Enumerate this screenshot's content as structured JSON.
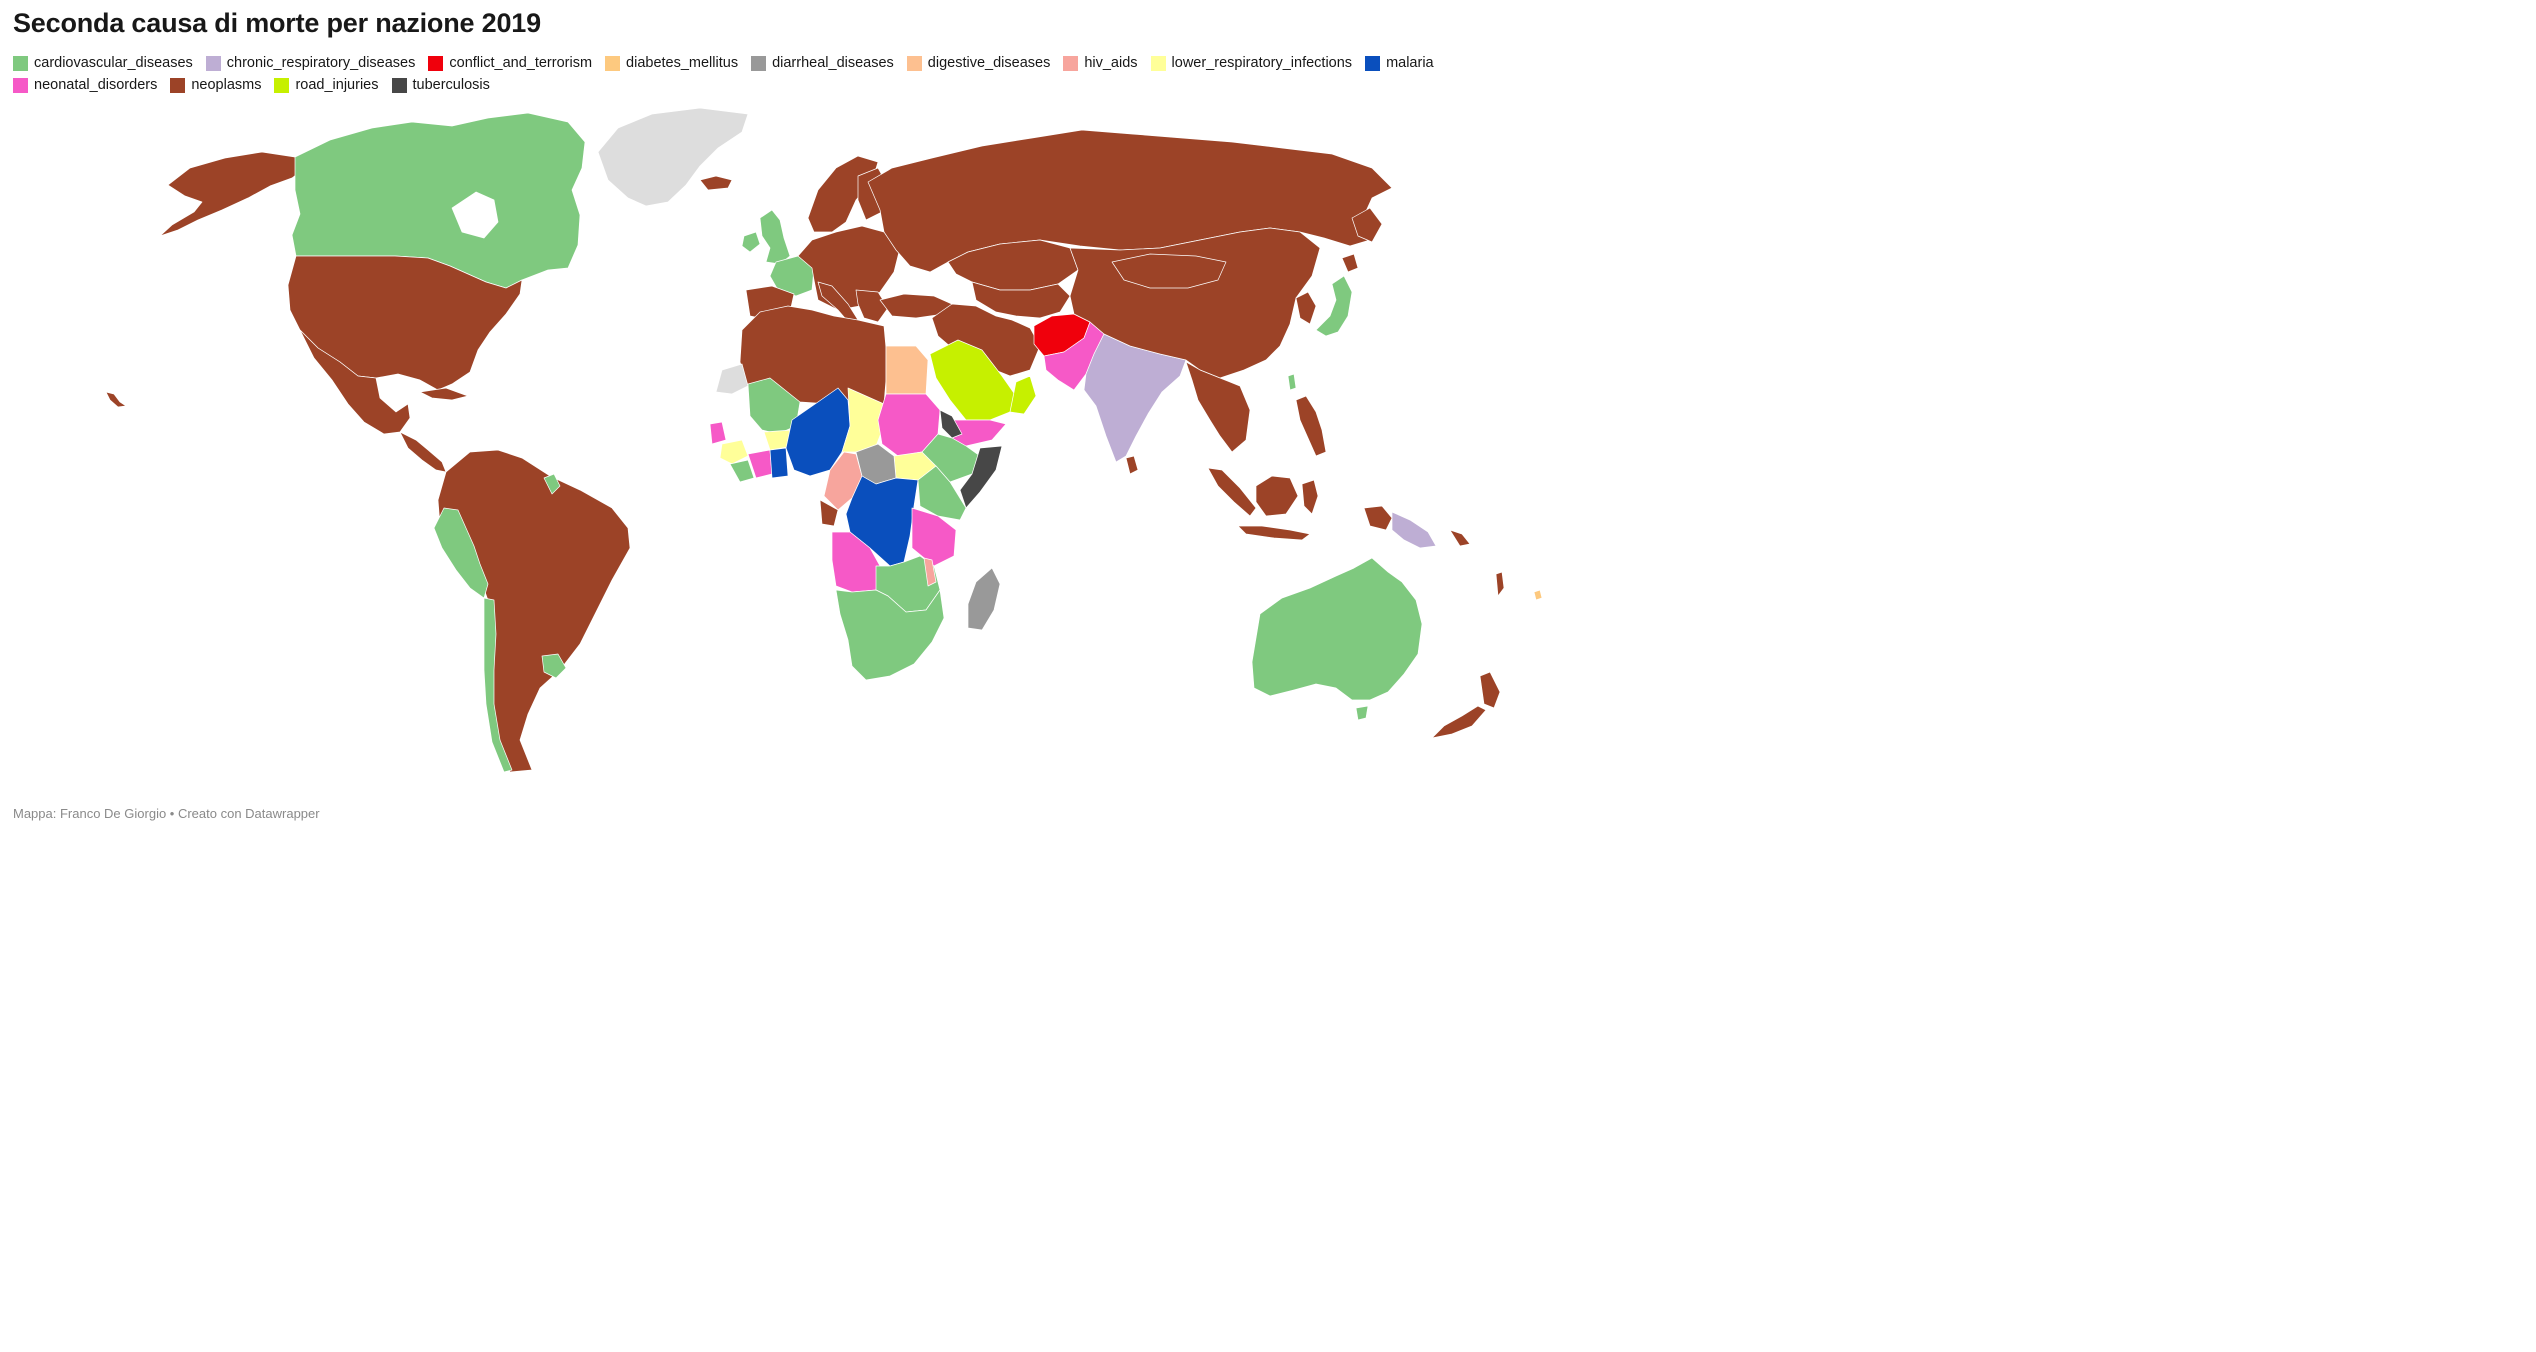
{
  "title": "Seconda causa di morte per nazione 2019",
  "legend": [
    {
      "label": "cardiovascular_diseases",
      "color": "#7fc97f"
    },
    {
      "label": "chronic_respiratory_diseases",
      "color": "#beaed4"
    },
    {
      "label": "conflict_and_terrorism",
      "color": "#f0000c"
    },
    {
      "label": "diabetes_mellitus",
      "color": "#fdc97f"
    },
    {
      "label": "diarrheal_diseases",
      "color": "#999999"
    },
    {
      "label": "digestive_diseases",
      "color": "#fdc090"
    },
    {
      "label": "hiv_aids",
      "color": "#f7a59d"
    },
    {
      "label": "lower_respiratory_infections",
      "color": "#ffff99"
    },
    {
      "label": "malaria",
      "color": "#0a4fbd"
    },
    {
      "label": "neonatal_disorders",
      "color": "#f659c7"
    },
    {
      "label": "neoplasms",
      "color": "#9c4327"
    },
    {
      "label": "road_injuries",
      "color": "#c6f000"
    },
    {
      "label": "tuberculosis",
      "color": "#474747"
    }
  ],
  "no_data_color": "#dddddd",
  "footer": "Mappa: Franco De Giorgio • Creato con Datawrapper"
}
